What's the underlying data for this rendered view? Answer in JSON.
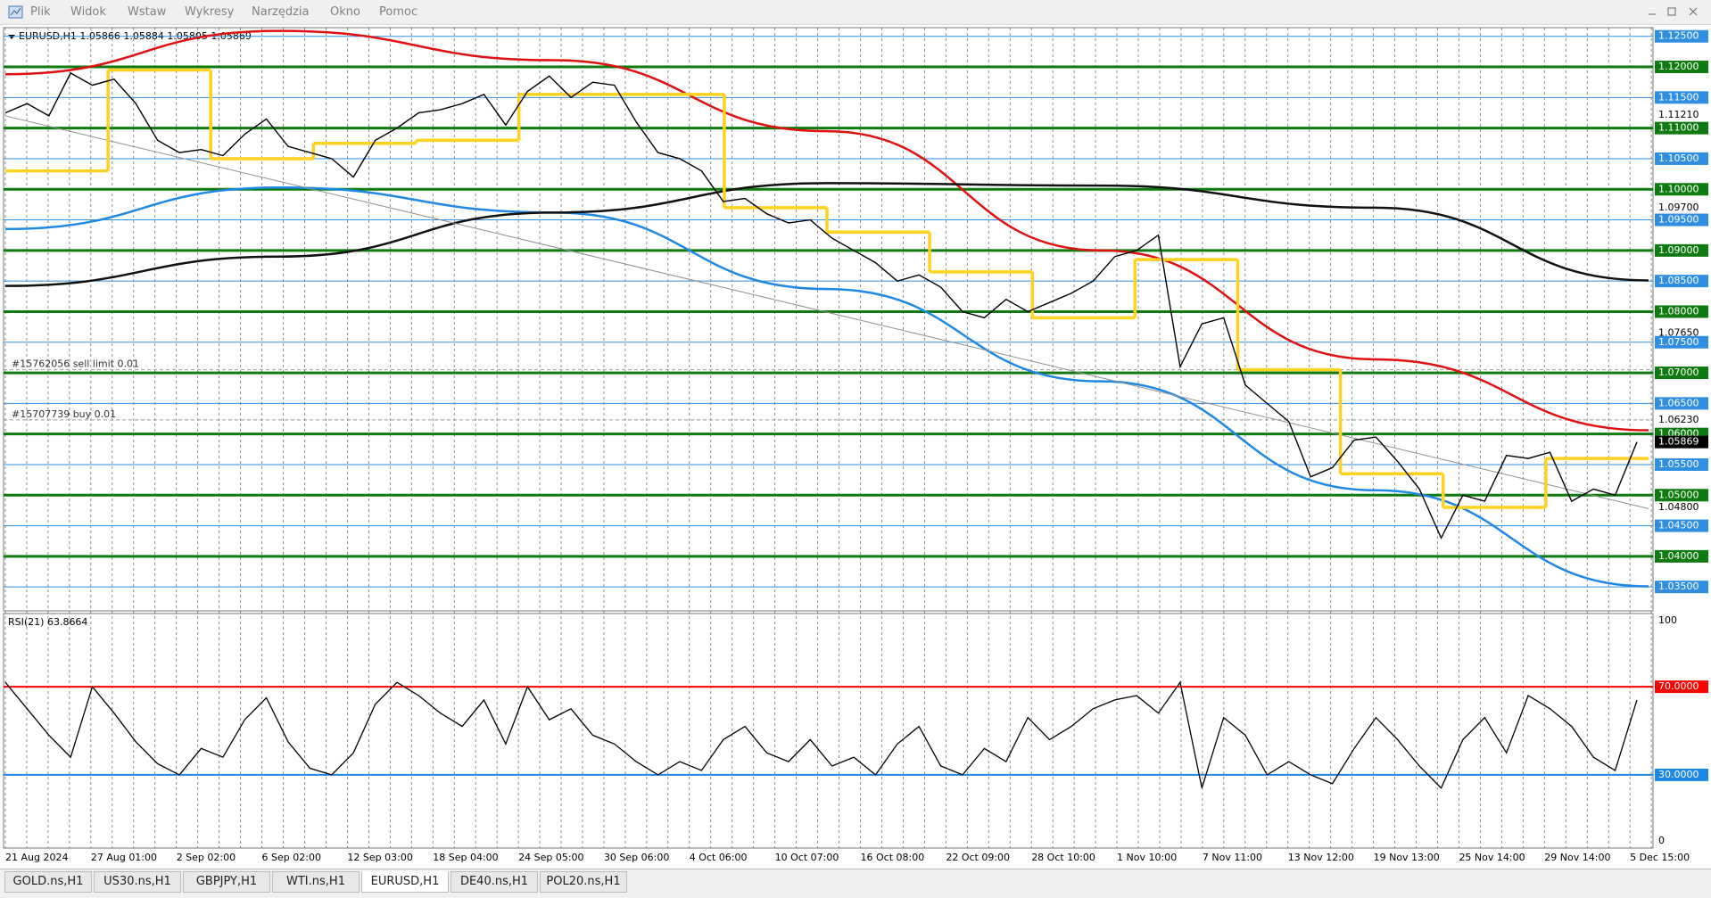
{
  "menu": [
    "Plik",
    "Widok",
    "Wstaw",
    "Wykresy",
    "Narzędzia",
    "Okno",
    "Pomoc"
  ],
  "chart": {
    "header": "EURUSD,H1  1.05866 1.05884 1.05805 1.05869",
    "ylim": [
      1.03109,
      1.12642
    ],
    "major_levels": [
      {
        "value": 1.12,
        "label": "1.12000"
      },
      {
        "value": 1.11,
        "label": "1.11000"
      },
      {
        "value": 1.1,
        "label": "1.10000"
      },
      {
        "value": 1.09,
        "label": "1.09000"
      },
      {
        "value": 1.08,
        "label": "1.08000"
      },
      {
        "value": 1.07,
        "label": "1.07000"
      },
      {
        "value": 1.06,
        "label": "1.06000"
      },
      {
        "value": 1.05,
        "label": "1.05000"
      },
      {
        "value": 1.04,
        "label": "1.04000"
      }
    ],
    "major_color": "#0f7a0f",
    "minor_levels": [
      {
        "value": 1.125,
        "label": "1.12500"
      },
      {
        "value": 1.115,
        "label": "1.11500"
      },
      {
        "value": 1.105,
        "label": "1.10500"
      },
      {
        "value": 1.095,
        "label": "1.09500"
      },
      {
        "value": 1.085,
        "label": "1.08500"
      },
      {
        "value": 1.075,
        "label": "1.07500"
      },
      {
        "value": 1.065,
        "label": "1.06500"
      },
      {
        "value": 1.055,
        "label": "1.05500"
      },
      {
        "value": 1.045,
        "label": "1.04500"
      },
      {
        "value": 1.035,
        "label": "1.03500"
      }
    ],
    "minor_color": "#2f8ee0",
    "other_labels": [
      {
        "value": 1.1121,
        "label": "1.11210"
      },
      {
        "value": 1.097,
        "label": "1.09700"
      },
      {
        "value": 1.0765,
        "label": "1.07650"
      },
      {
        "value": 1.0623,
        "label": "1.06230"
      },
      {
        "value": 1.048,
        "label": "1.04800"
      }
    ],
    "current": {
      "value": 1.05869,
      "label": "1.05869"
    },
    "price": {
      "color": "#000000",
      "values": [
        1.1125,
        1.114,
        1.112,
        1.119,
        1.117,
        1.118,
        1.114,
        1.108,
        1.106,
        1.1065,
        1.1055,
        1.109,
        1.1115,
        1.107,
        1.106,
        1.105,
        1.102,
        1.108,
        1.11,
        1.1125,
        1.113,
        1.114,
        1.1155,
        1.1105,
        1.116,
        1.1185,
        1.115,
        1.1175,
        1.117,
        1.111,
        1.106,
        1.105,
        1.103,
        1.098,
        1.0985,
        1.096,
        1.0945,
        1.095,
        1.092,
        1.09,
        1.088,
        1.085,
        1.086,
        1.084,
        1.08,
        1.079,
        1.082,
        1.08,
        1.0815,
        1.083,
        1.085,
        1.089,
        1.09,
        1.0925,
        1.071,
        1.078,
        1.079,
        1.068,
        1.065,
        1.062,
        1.053,
        1.0545,
        1.059,
        1.0595,
        1.0555,
        1.051,
        1.043,
        1.05,
        1.049,
        1.0565,
        1.056,
        1.057,
        1.049,
        1.051,
        1.05,
        1.0587
      ]
    },
    "indicators": [
      {
        "color": "#e01010",
        "values": [
          1.1188,
          1.1259,
          1.1211,
          1.1095,
          1.09,
          1.0722,
          1.0606
        ]
      },
      {
        "color": "#1e88e5",
        "values": [
          1.0935,
          1.1003,
          1.0962,
          1.0837,
          1.0686,
          1.0508,
          1.0351
        ]
      },
      {
        "color": "#111111",
        "values": [
          1.0842,
          1.089,
          1.0962,
          1.101,
          1.1006,
          1.097,
          1.0851
        ]
      },
      {
        "color": "#909090",
        "values": [
          1.112,
          1.0478
        ]
      }
    ],
    "steps": {
      "color": "#ffd21f",
      "values": [
        1.103,
        1.1195,
        1.105,
        1.1075,
        1.108,
        1.1155,
        1.1155,
        1.097,
        1.093,
        1.0865,
        1.079,
        1.0885,
        1.0705,
        1.0535,
        1.048,
        1.056
      ]
    },
    "orders": [
      {
        "text": "#15762056 sell limit 0.01",
        "value": 1.0705
      },
      {
        "text": "#15707739 buy 0.01",
        "value": 1.0623
      }
    ],
    "time_labels": [
      "21 Aug 2024",
      "27 Aug 01:00",
      "2 Sep 02:00",
      "6 Sep 02:00",
      "12 Sep 03:00",
      "18 Sep 04:00",
      "24 Sep 05:00",
      "30 Sep 06:00",
      "4 Oct 06:00",
      "10 Oct 07:00",
      "16 Oct 08:00",
      "22 Oct 09:00",
      "28 Oct 10:00",
      "1 Nov 10:00",
      "7 Nov 11:00",
      "13 Nov 12:00",
      "19 Nov 13:00",
      "25 Nov 14:00",
      "29 Nov 14:00",
      "5 Dec 15:00"
    ]
  },
  "rsi": {
    "title": "RSI(21) 63.8664",
    "ylim": [
      0,
      100
    ],
    "ticks": [
      100,
      0
    ],
    "levels": [
      {
        "value": 70,
        "label": "70.0000",
        "color": "#ff0000"
      },
      {
        "value": 30,
        "label": "30.0000",
        "color": "#1e88e5"
      }
    ],
    "color": "#000000",
    "values": [
      72,
      60,
      48,
      38,
      70,
      58,
      45,
      35,
      30,
      42,
      38,
      55,
      65,
      45,
      33,
      30,
      40,
      62,
      72,
      66,
      58,
      52,
      64,
      44,
      70,
      55,
      60,
      48,
      44,
      36,
      30,
      36,
      32,
      46,
      52,
      40,
      36,
      46,
      34,
      38,
      30,
      44,
      52,
      34,
      30,
      42,
      36,
      56,
      46,
      52,
      60,
      64,
      66,
      58,
      72,
      24,
      56,
      48,
      30,
      36,
      30,
      26,
      42,
      56,
      46,
      34,
      24,
      46,
      56,
      40,
      66,
      60,
      52,
      38,
      32,
      64
    ]
  },
  "tabs": [
    "GOLD.ns,H1",
    "US30.ns,H1",
    "GBPJPY,H1",
    "WTI.ns,H1",
    "EURUSD,H1",
    "DE40.ns,H1",
    "POL20.ns,H1"
  ],
  "active_tab": 4
}
